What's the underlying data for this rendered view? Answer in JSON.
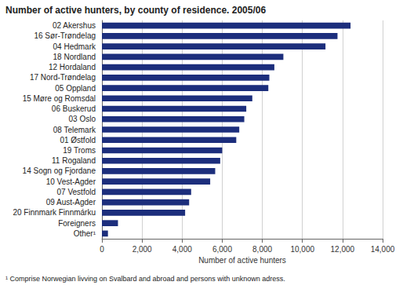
{
  "chart_data": {
    "type": "bar",
    "orientation": "horizontal",
    "title": "Number of active hunters, by county of residence. 2005/06",
    "xlabel": "Number of active hunters",
    "note": "¹ Comprise Norwegian livving on Svalbard and abroad and persons with unknown adress.",
    "categories": [
      "02 Akershus",
      "16 Sør-Trøndelag",
      "04 Hedmark",
      "18 Nordland",
      "12 Hordaland",
      "17 Nord-Trøndelag",
      "05 Oppland",
      "15 Møre og Romsdal",
      "06 Buskerud",
      "03 Oslo",
      "08 Telemark",
      "01 Østfold",
      "19 Troms",
      "11 Rogaland",
      "14 Sogn og Fjordane",
      "10 Vest-Agder",
      "07 Vestfold",
      "09 Aust-Agder",
      "20 Finnmark Finnmárku",
      "Foreigners",
      "Other¹"
    ],
    "values": [
      12400,
      11750,
      11150,
      9050,
      8600,
      8350,
      8300,
      7500,
      7200,
      7100,
      6850,
      6700,
      6000,
      5900,
      5650,
      5400,
      4450,
      4350,
      4150,
      800,
      300
    ],
    "color": "#1c2e7c",
    "xlim": [
      0,
      14000
    ],
    "xticks": [
      0,
      2000,
      4000,
      6000,
      8000,
      10000,
      12000,
      14000
    ],
    "grid": true
  }
}
